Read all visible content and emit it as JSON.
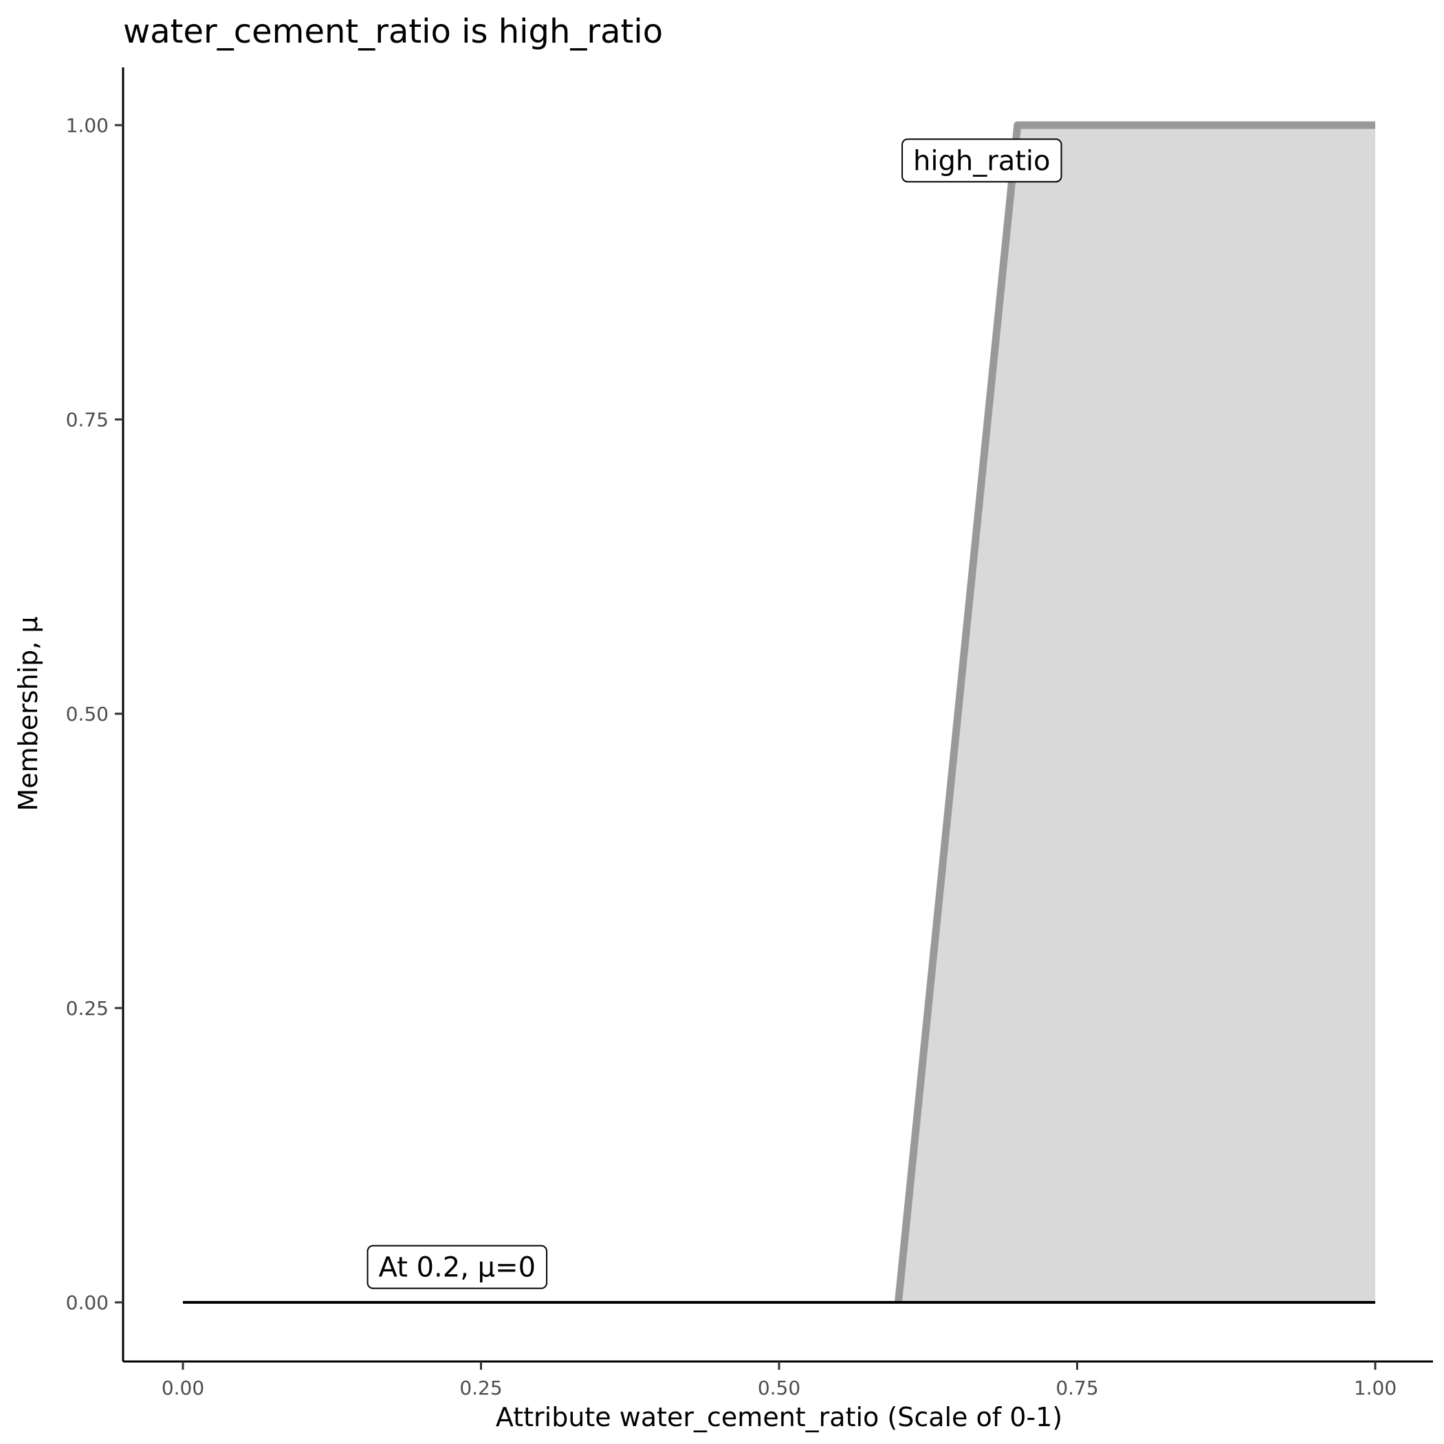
{
  "chart_data": {
    "type": "area",
    "title": "water_cement_ratio is high_ratio",
    "xlabel": "Attribute water_cement_ratio (Scale of 0-1)",
    "ylabel": "Membership, μ",
    "xlim": [
      -0.05,
      1.05
    ],
    "ylim": [
      -0.05,
      1.05
    ],
    "x_ticks": [
      "0.00",
      "0.25",
      "0.50",
      "0.75",
      "1.00"
    ],
    "y_ticks": [
      "0.00",
      "0.25",
      "0.50",
      "0.75",
      "1.00"
    ],
    "grid": false,
    "series": [
      {
        "x": [
          0.6,
          0.7,
          1.0
        ],
        "y": [
          0,
          1,
          1
        ],
        "color": "#999999",
        "fill": "#d9d9d9"
      }
    ],
    "evaluation_line": {
      "x": [
        0,
        1
      ],
      "y": [
        0,
        0
      ],
      "color": "#000000"
    },
    "annotations": [
      {
        "text": "high_ratio",
        "x": 0.67,
        "y": 0.97
      },
      {
        "text": "At 0.2, μ=0",
        "x": 0.23,
        "y": 0.03
      }
    ]
  }
}
